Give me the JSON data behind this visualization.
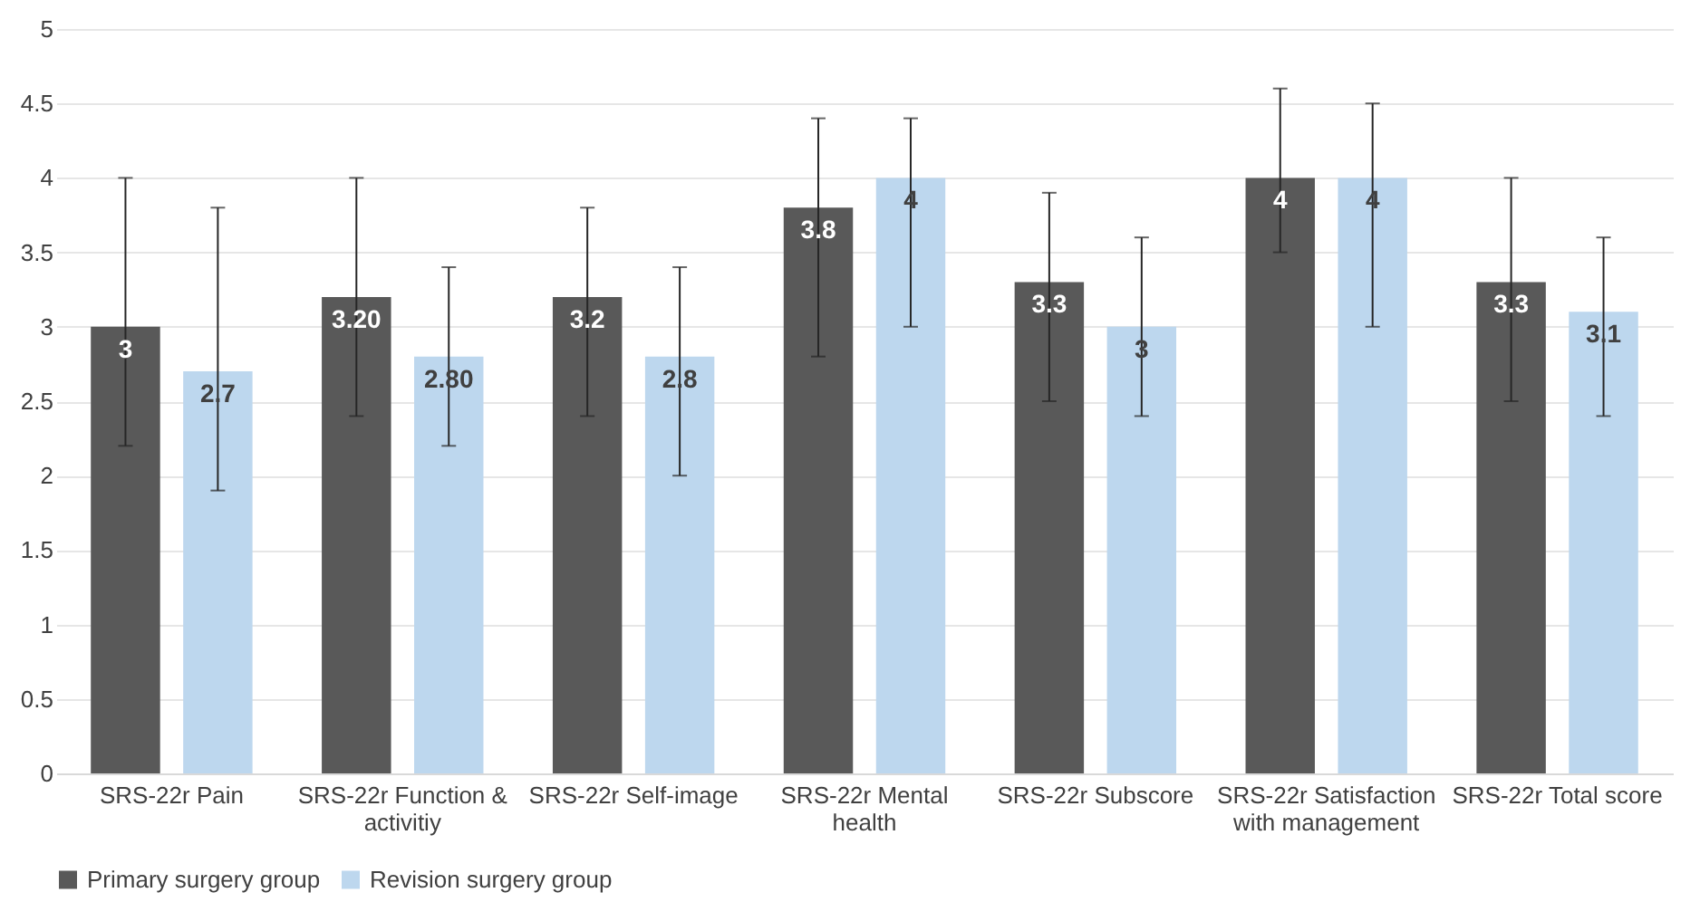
{
  "chart_data": {
    "type": "bar",
    "categories": [
      "SRS-22r Pain",
      "SRS-22r Function & activitiy",
      "SRS-22r Self-image",
      "SRS-22r Mental health",
      "SRS-22r Subscore",
      "SRS-22r Satisfaction with management",
      "SRS-22r Total score"
    ],
    "series": [
      {
        "name": "Primary surgery group",
        "color": "#595959",
        "values": [
          3,
          3.2,
          3.2,
          3.8,
          3.3,
          4,
          3.3
        ],
        "value_labels": [
          "3",
          "3.20",
          "3.2",
          "3.8",
          "3.3",
          "4",
          "3.3"
        ],
        "errors": [
          [
            2.2,
            4.0
          ],
          [
            2.4,
            4.0
          ],
          [
            2.4,
            3.8
          ],
          [
            2.8,
            4.4
          ],
          [
            2.5,
            3.9
          ],
          [
            3.5,
            4.6
          ],
          [
            2.5,
            4.0
          ]
        ]
      },
      {
        "name": "Revision surgery group",
        "color": "#bdd7ee",
        "values": [
          2.7,
          2.8,
          2.8,
          4,
          3,
          4,
          3.1
        ],
        "value_labels": [
          "2.7",
          "2.80",
          "2.8",
          "4",
          "3",
          "4",
          "3.1"
        ],
        "errors": [
          [
            1.9,
            3.8
          ],
          [
            2.2,
            3.4
          ],
          [
            2.0,
            3.4
          ],
          [
            3.0,
            4.4
          ],
          [
            2.4,
            3.6
          ],
          [
            3.0,
            4.5
          ],
          [
            2.4,
            3.6
          ]
        ]
      }
    ],
    "ylim": [
      0,
      5
    ],
    "yticks": [
      0,
      0.5,
      1,
      1.5,
      2,
      2.5,
      3,
      3.5,
      4,
      4.5,
      5
    ],
    "grid": "y",
    "legend": "bottom"
  }
}
